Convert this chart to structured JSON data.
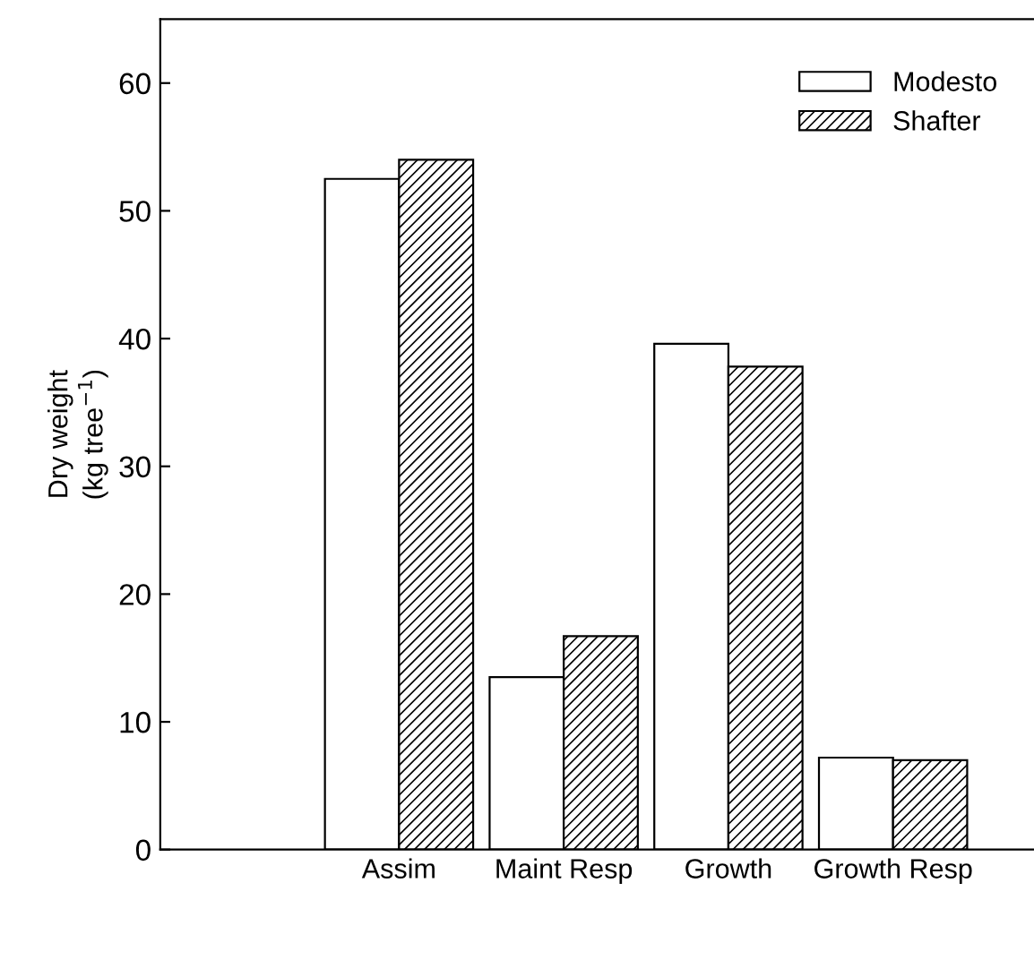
{
  "chart_data": {
    "type": "bar",
    "ylabel": "Dry weight\n(kg tree$^{−1}$)",
    "categories": [
      "Assim",
      "Maint Resp",
      "Growth",
      "Growth Resp"
    ],
    "series": [
      {
        "name": "Modesto",
        "color": "#ffffff",
        "values": [
          52.5,
          13.5,
          39.6,
          7.2
        ]
      },
      {
        "name": "Shafter",
        "color": "#000000",
        "values": [
          54.0,
          16.7,
          37.8,
          7.0
        ]
      }
    ],
    "ylim": [
      0,
      65
    ],
    "yticks": [
      0,
      10,
      20,
      30,
      40,
      50,
      60
    ],
    "grid": false,
    "legend": "top right"
  }
}
